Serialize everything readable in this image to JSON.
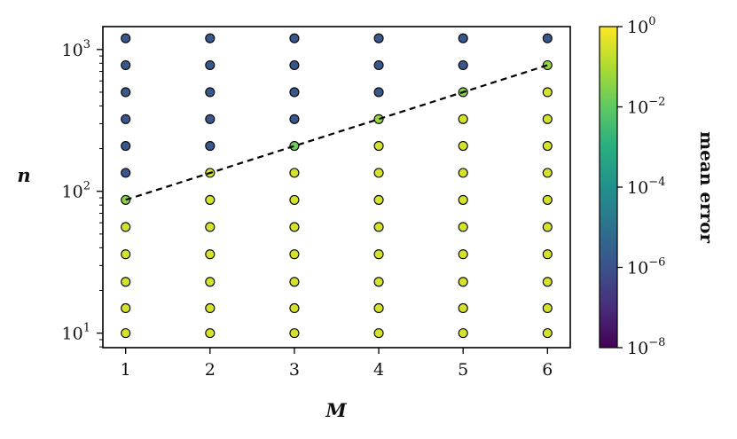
{
  "chart_data": {
    "type": "scatter",
    "xlabel": "M",
    "ylabel": "n",
    "x_ticks": [
      "1",
      "2",
      "3",
      "4",
      "5",
      "6"
    ],
    "y_ticks": [
      {
        "base": "10",
        "exp": "1"
      },
      {
        "base": "10",
        "exp": "2"
      },
      {
        "base": "10",
        "exp": "3"
      }
    ],
    "xlim": [
      0.73,
      6.27
    ],
    "ylim": [
      7.9,
      1450
    ],
    "yscale": "log",
    "grid": false,
    "n_values": [
      10,
      15,
      23,
      36,
      56,
      87,
      135,
      209,
      323,
      500,
      775,
      1200
    ],
    "mean_error_log10": [
      [
        -0.5,
        -0.5,
        -0.5,
        -0.5,
        -0.5,
        -1.5,
        -5.8,
        -5.8,
        -5.8,
        -5.8,
        -5.8,
        -5.8
      ],
      [
        -0.5,
        -0.5,
        -0.5,
        -0.5,
        -0.5,
        -0.5,
        -0.5,
        -5.8,
        -5.8,
        -5.8,
        -5.8,
        -5.8
      ],
      [
        -0.5,
        -0.5,
        -0.5,
        -0.5,
        -0.5,
        -0.5,
        -0.5,
        -1.8,
        -5.8,
        -5.8,
        -5.8,
        -5.8
      ],
      [
        -0.5,
        -0.5,
        -0.5,
        -0.5,
        -0.5,
        -0.5,
        -0.5,
        -0.5,
        -1.3,
        -5.8,
        -5.8,
        -5.8
      ],
      [
        -0.5,
        -0.5,
        -0.5,
        -0.5,
        -0.5,
        -0.5,
        -0.5,
        -0.5,
        -0.5,
        -1.5,
        -5.8,
        -5.8
      ],
      [
        -0.5,
        -0.5,
        -0.5,
        -0.5,
        -0.5,
        -0.5,
        -0.5,
        -0.5,
        -0.5,
        -0.5,
        -1.3,
        -5.8
      ]
    ],
    "trend_line": {
      "x": [
        1,
        6
      ],
      "y": [
        87,
        775
      ],
      "style": "dashed",
      "color": "#000000"
    },
    "colorbar": {
      "label": "mean error",
      "colormap": "viridis",
      "range_log10": [
        -8,
        0
      ],
      "ticks": [
        {
          "base": "10",
          "exp": "0"
        },
        {
          "base": "10",
          "exp": "−2"
        },
        {
          "base": "10",
          "exp": "−4"
        },
        {
          "base": "10",
          "exp": "−6"
        },
        {
          "base": "10",
          "exp": "−8"
        }
      ]
    }
  }
}
